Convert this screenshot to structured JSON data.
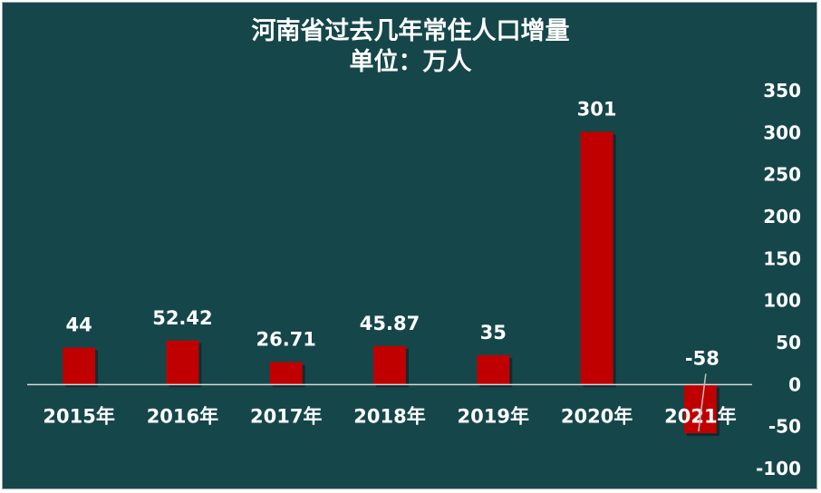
{
  "chart_data": {
    "type": "bar",
    "title": "河南省过去几年常住人口增量",
    "subtitle": "单位：万人",
    "categories": [
      "2015年",
      "2016年",
      "2017年",
      "2018年",
      "2019年",
      "2020年",
      "2021年"
    ],
    "values": [
      44,
      52.42,
      26.71,
      45.87,
      35,
      301,
      -58
    ],
    "data_labels": [
      "44",
      "52.42",
      "26.71",
      "45.87",
      "35",
      "301",
      "-58"
    ],
    "y_ticks": [
      350,
      300,
      250,
      200,
      150,
      100,
      50,
      0,
      -50,
      -100
    ],
    "ylim": [
      -100,
      350
    ],
    "y_axis_side": "right",
    "grid": false,
    "legend": "none",
    "colors": {
      "background": "#15464a",
      "bar": "#c00000",
      "text": "#ffffff",
      "axis": "#d9d9d9"
    }
  }
}
